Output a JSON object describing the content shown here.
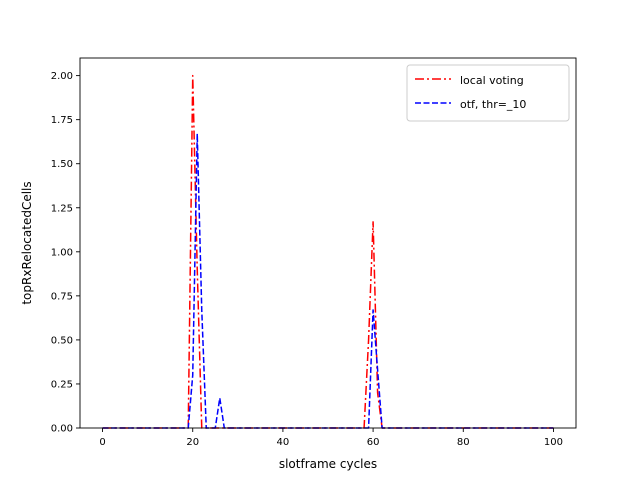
{
  "chart_data": {
    "type": "line",
    "title": "",
    "xlabel": "slotframe cycles",
    "ylabel": "topRxRelocatedCells",
    "xlim": [
      -5,
      105
    ],
    "ylim": [
      0,
      2.1
    ],
    "xticks": [
      0,
      20,
      40,
      60,
      80,
      100
    ],
    "yticks": [
      0.0,
      0.25,
      0.5,
      0.75,
      1.0,
      1.25,
      1.5,
      1.75,
      2.0
    ],
    "ytick_labels": [
      "0.00",
      "0.25",
      "0.50",
      "0.75",
      "1.00",
      "1.25",
      "1.50",
      "1.75",
      "2.00"
    ],
    "grid": false,
    "legend_position": "top-right",
    "series": [
      {
        "name": "local voting",
        "color": "#ff0000",
        "style": "dash-dot",
        "x": [
          0,
          19,
          20,
          21,
          22,
          58,
          59,
          60,
          61,
          62,
          100
        ],
        "y": [
          0,
          0,
          2.0,
          0.9,
          0,
          0,
          0.5,
          1.17,
          0.2,
          0,
          0
        ]
      },
      {
        "name": "otf, thr=_10",
        "color": "#0000ff",
        "style": "dashed",
        "x": [
          0,
          19,
          20,
          21,
          22,
          23,
          25,
          26,
          27,
          59,
          60,
          61,
          62,
          100
        ],
        "y": [
          0,
          0,
          0.3,
          1.67,
          0.67,
          0,
          0,
          0.17,
          0,
          0,
          0.67,
          0.33,
          0,
          0
        ]
      }
    ]
  }
}
